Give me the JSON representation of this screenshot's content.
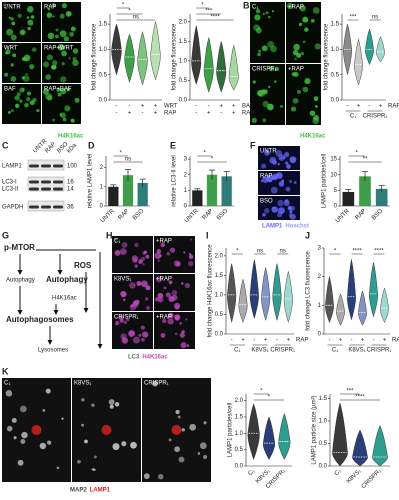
{
  "panel_labels": [
    "A",
    "B",
    "C",
    "D",
    "E",
    "F",
    "G",
    "H",
    "I",
    "J",
    "K"
  ],
  "micrographs": [
    {
      "labels": [
        "UNTR",
        "RAP",
        "WRT",
        "RAP+WRT",
        "BAF",
        "RAP+BAF"
      ],
      "caption": [
        "H4K16ac"
      ]
    },
    {
      "labels": [
        "C₁",
        "+RAP",
        "CRISPR₁",
        "+RAP"
      ],
      "caption": [
        "H4K16ac"
      ]
    },
    {
      "labels": [
        "UNTR",
        "RAP",
        "BSO"
      ],
      "caption": [
        "LAMP1",
        "Hoechst"
      ]
    },
    {
      "labels": [
        "C₁",
        "+RAP",
        "K8VS₁",
        "+RAP",
        "CRISPR₁",
        "+RAP"
      ],
      "caption": [
        "LC3",
        "H4K16ac"
      ]
    },
    {
      "labels": [
        "C₁",
        "K8VS₁",
        "CRISPR₁"
      ],
      "caption": [
        "MAP2",
        "LAMP1"
      ]
    }
  ],
  "blot": {
    "lanes": [
      "UNTR",
      "RAP",
      "BSO"
    ],
    "unit": "kDa",
    "rows": [
      {
        "name": "LAMP1",
        "kda": 100
      },
      {
        "name": "LC3-I",
        "kda": 16
      },
      {
        "name": "LC3-II",
        "kda": 14
      },
      {
        "name": "GAPDH",
        "kda": 36
      }
    ]
  },
  "diagram": {
    "nodes": [
      "p-MTOR",
      "ROS",
      "Autophagy",
      "Autophagy",
      "H4K16ac",
      "Autophagosomes",
      "Lysosomes"
    ]
  },
  "chart_data": [
    {
      "type": "violin",
      "y_label": "fold change fluorescence",
      "values": [
        1.0,
        0.85,
        0.8,
        0.9
      ],
      "min": [
        0.5,
        0.35,
        0.3,
        0.4
      ],
      "max": [
        1.5,
        1.3,
        1.35,
        1.55
      ],
      "colors": [
        "#3a3a3a",
        "#3f9e4a",
        "#7cc47f",
        "#b9e0b0"
      ],
      "conditions": [
        {
          "name": "WRT",
          "signs": [
            "-",
            "-",
            "+",
            "+"
          ]
        },
        {
          "name": "RAP",
          "signs": [
            "-",
            "+",
            "-",
            "+"
          ]
        }
      ],
      "ylim": [
        0,
        1.7
      ],
      "yticks": [
        {
          "value": 0,
          "label": "0.0"
        },
        {
          "value": 0.5,
          "label": "0.5"
        },
        {
          "value": 1,
          "label": "1.0"
        },
        {
          "value": 1.5,
          "label": "1.5"
        }
      ],
      "annotations": [
        "ns",
        "*",
        "*"
      ]
    },
    {
      "type": "violin",
      "y_label": "fold change fluorescence",
      "values": [
        1.0,
        0.8,
        0.75,
        0.6
      ],
      "min": [
        0.4,
        0.2,
        0.2,
        0.25
      ],
      "max": [
        1.9,
        1.6,
        1.5,
        1.4
      ],
      "colors": [
        "#3a3a3a",
        "#3f9e4a",
        "#2f6d3a",
        "#a6d7a0"
      ],
      "conditions": [
        {
          "name": "BAF",
          "signs": [
            "-",
            "-",
            "+",
            "+"
          ]
        },
        {
          "name": "RAP",
          "signs": [
            "-",
            "+",
            "-",
            "+"
          ]
        }
      ],
      "ylim": [
        0,
        2.2
      ],
      "yticks": [
        {
          "value": 0,
          "label": "0.0"
        },
        {
          "value": 0.5,
          "label": "0.5"
        },
        {
          "value": 1,
          "label": "1.0"
        },
        {
          "value": 1.5,
          "label": "1.5"
        },
        {
          "value": 2,
          "label": "2.0"
        }
      ],
      "annotations": [
        "****",
        "***",
        "*"
      ]
    },
    {
      "type": "violin",
      "y_label": "fold change fluorescence",
      "values": [
        1.0,
        0.7,
        1.0,
        0.95
      ],
      "min": [
        0.5,
        0.3,
        0.7,
        0.75
      ],
      "max": [
        1.5,
        1.2,
        1.4,
        1.25
      ],
      "colors": [
        "#8a8a8a",
        "#c8c8c8",
        "#2e9c8e",
        "#9fd8cf"
      ],
      "groups": [
        "C₁",
        "CRISPR₁"
      ],
      "conditions": [
        {
          "name": "RAP",
          "signs": [
            "-",
            "+",
            "-",
            "+"
          ]
        }
      ],
      "ylim": [
        0,
        1.7
      ],
      "yticks": [
        {
          "value": 0,
          "label": "0.0"
        },
        {
          "value": 0.5,
          "label": "0.5"
        },
        {
          "value": 1,
          "label": "1.0"
        },
        {
          "value": 1.5,
          "label": "1.5"
        }
      ],
      "annotations": [
        "***",
        "ns"
      ]
    },
    {
      "type": "bar",
      "y_label": "relative LAMP1 level",
      "categories": [
        "UNTR",
        "RAP",
        "BSO"
      ],
      "values": [
        1.0,
        1.6,
        1.2
      ],
      "errors": [
        0.1,
        0.3,
        0.2
      ],
      "colors": [
        "#222222",
        "#3f9e4a",
        "#2e7d7a"
      ],
      "ylim": [
        0,
        2.6
      ],
      "yticks": [
        0,
        1,
        2
      ],
      "annotations": [
        "ns",
        "*"
      ]
    },
    {
      "type": "bar",
      "y_label": "relative LC3-II level",
      "categories": [
        "UNTR",
        "RAP",
        "BSO"
      ],
      "values": [
        1.0,
        2.0,
        1.9
      ],
      "errors": [
        0.1,
        0.3,
        0.3
      ],
      "colors": [
        "#222222",
        "#3f9e4a",
        "#2e7d7a"
      ],
      "ylim": [
        0,
        3.2
      ],
      "yticks": [
        0,
        1,
        2,
        3
      ],
      "annotations": [
        "*",
        "*"
      ]
    },
    {
      "type": "bar",
      "y_label": "LAMP1 particles/cell",
      "categories": [
        "UNTR",
        "RAP",
        "BSO"
      ],
      "values": [
        4.5,
        9.5,
        5.5
      ],
      "errors": [
        0.8,
        1.5,
        1.0
      ],
      "colors": [
        "#222222",
        "#3f9e4a",
        "#2e7d7a"
      ],
      "ylim": [
        0,
        16
      ],
      "yticks": [
        0,
        5,
        10,
        15
      ],
      "annotations": [
        "**",
        "*"
      ]
    },
    {
      "type": "violin",
      "y_label": "fold change H4K16ac fluorescence",
      "values": [
        1.0,
        0.75,
        1.0,
        0.95,
        1.0,
        0.9
      ],
      "min": [
        0.3,
        0.3,
        0.4,
        0.35,
        0.35,
        0.3
      ],
      "max": [
        1.8,
        1.4,
        1.9,
        1.7,
        1.8,
        1.6
      ],
      "colors": [
        "#555555",
        "#aaaaaa",
        "#2a3f7a",
        "#8393c4",
        "#2e9c8e",
        "#9fd8cf"
      ],
      "groups": [
        "C₁",
        "K8VS₁",
        "CRISPR₁"
      ],
      "conditions": [
        {
          "name": "RAP",
          "signs": [
            "-",
            "+",
            "-",
            "+",
            "-",
            "+"
          ]
        }
      ],
      "ylim": [
        0,
        2.2
      ],
      "yticks": [
        {
          "value": 0,
          "label": "0.0"
        },
        {
          "value": 0.5,
          "label": "0.5"
        },
        {
          "value": 1,
          "label": "1.0"
        },
        {
          "value": 1.5,
          "label": "1.5"
        },
        {
          "value": 2,
          "label": "2.0"
        }
      ],
      "annotations": [
        "*",
        "ns",
        "ns"
      ]
    },
    {
      "type": "violin",
      "y_label": "fold change LC3 fluorescence",
      "values": [
        1.0,
        0.8,
        1.3,
        0.75,
        1.4,
        0.9
      ],
      "min": [
        0.4,
        0.3,
        0.5,
        0.3,
        0.6,
        0.4
      ],
      "max": [
        2.0,
        1.4,
        2.6,
        1.5,
        2.5,
        1.6
      ],
      "colors": [
        "#555555",
        "#aaaaaa",
        "#2a3f7a",
        "#8393c4",
        "#2e9c8e",
        "#9fd8cf"
      ],
      "groups": [
        "C₁",
        "K8VS₁",
        "CRISPR₁"
      ],
      "conditions": [
        {
          "name": "RAP",
          "signs": [
            "-",
            "+",
            "-",
            "+",
            "-",
            "+"
          ]
        }
      ],
      "ylim": [
        0,
        3
      ],
      "yticks": [
        0,
        1,
        2,
        3
      ],
      "annotations": [
        "*",
        "****",
        "****"
      ]
    },
    {
      "type": "violin",
      "y_label": "LAMP1 particles/cell",
      "categories": [
        "C₁",
        "K8VS₁",
        "CRISPR₁"
      ],
      "values": [
        1.0,
        0.7,
        0.75
      ],
      "min": [
        0.2,
        0.2,
        0.2
      ],
      "max": [
        1.9,
        1.5,
        1.6
      ],
      "colors": [
        "#3a3a3a",
        "#2a3f7a",
        "#2e9c8e"
      ],
      "ylim": [
        0,
        2.2
      ],
      "yticks": [
        {
          "value": 0,
          "label": "0.0"
        },
        {
          "value": 0.5,
          "label": "0.5"
        },
        {
          "value": 1,
          "label": "1.0"
        },
        {
          "value": 1.5,
          "label": "1.5"
        },
        {
          "value": 2,
          "label": "2.0"
        }
      ],
      "annotations": [
        "*",
        "*"
      ]
    },
    {
      "type": "violin",
      "y_label": "LAMP1 particle size (µm²)",
      "categories": [
        "C₁",
        "K8VS₁",
        "CRISPR₁"
      ],
      "values": [
        0.3,
        0.2,
        0.2
      ],
      "min": [
        0,
        0,
        0
      ],
      "max": [
        1.4,
        0.8,
        0.9
      ],
      "colors": [
        "#3a3a3a",
        "#2a3f7a",
        "#2e9c8e"
      ],
      "ylim": [
        0,
        1.6
      ],
      "yticks": [
        {
          "value": 0,
          "label": "0.0"
        },
        {
          "value": 0.5,
          "label": "0.5"
        },
        {
          "value": 1,
          "label": "1.0"
        },
        {
          "value": 1.5,
          "label": "1.5"
        }
      ],
      "annotations": [
        "****",
        "***"
      ]
    }
  ]
}
